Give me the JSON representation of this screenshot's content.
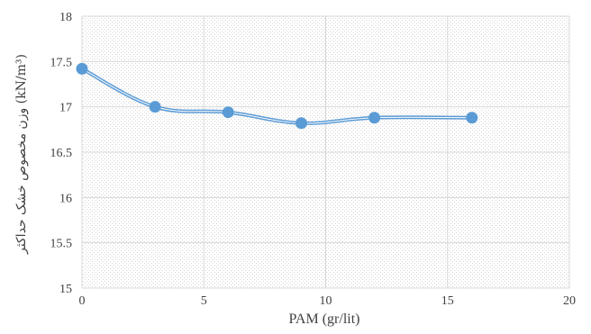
{
  "chart_data": {
    "type": "line",
    "title": "",
    "xlabel": "PAM (gr/lit)",
    "ylabel": "وزن مخصوص خشک حداکثر (kN/m³)",
    "xlim": [
      0,
      20
    ],
    "ylim": [
      15,
      18
    ],
    "x_ticks": [
      "0",
      "5",
      "10",
      "15",
      "20"
    ],
    "y_ticks": [
      "15",
      "15.5",
      "16",
      "16.5",
      "17",
      "17.5",
      "18"
    ],
    "grid": true,
    "legend": "none",
    "series": [
      {
        "x": [
          0,
          3,
          6,
          9,
          12,
          16
        ],
        "y": [
          17.42,
          17.0,
          16.94,
          16.82,
          16.88,
          16.88
        ]
      }
    ],
    "colors": {
      "line": "#5b9bd5",
      "marker": "#5b9bd5",
      "grid": "#d9d9d9",
      "dots": "#d6d6d6"
    }
  }
}
